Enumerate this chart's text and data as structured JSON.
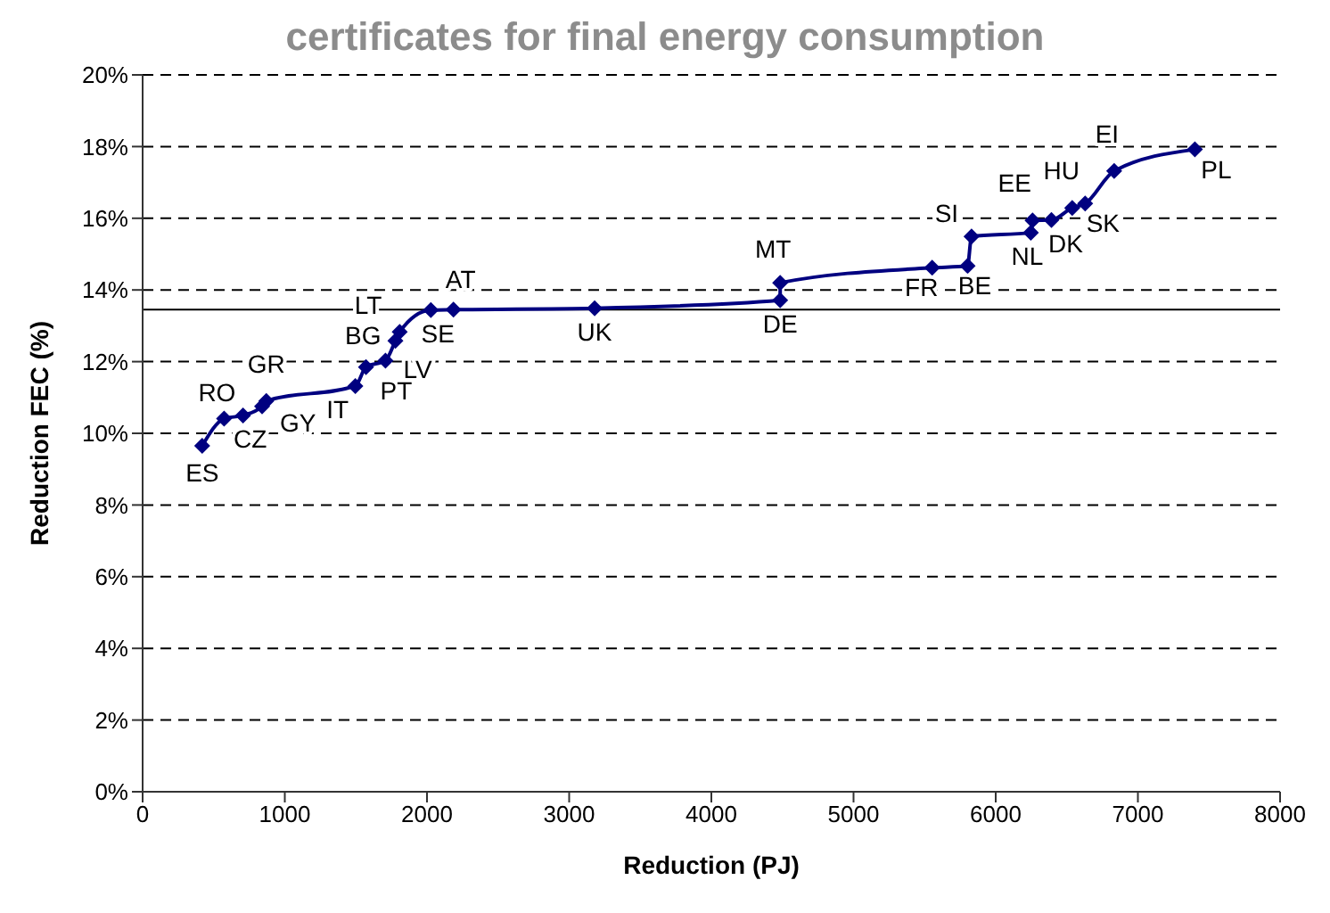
{
  "chart_data": {
    "type": "line",
    "title": "certificates for final energy consumption",
    "xlabel": "Reduction (PJ)",
    "ylabel": "Reduction FEC (%)",
    "series": [
      {
        "color": "#000080",
        "x": [
          419,
          573,
          706,
          840,
          870,
          1496,
          1571,
          1708,
          1778,
          1808,
          2027,
          2186,
          3179,
          4484,
          4484,
          5553,
          5802,
          5830,
          6247,
          6259,
          6392,
          6538,
          6629,
          6833,
          7401
        ],
        "values": [
          9.65,
          10.41,
          10.5,
          10.75,
          10.9,
          11.32,
          11.85,
          12.03,
          12.58,
          12.83,
          13.44,
          13.45,
          13.49,
          13.71,
          14.2,
          14.62,
          14.67,
          15.49,
          15.6,
          15.94,
          15.95,
          16.29,
          16.41,
          17.32,
          17.92
        ]
      }
    ],
    "annotations": [
      {
        "text": "ES",
        "x": 419,
        "y": 9.65
      },
      {
        "text": "RO",
        "x": 573,
        "y": 10.41
      },
      {
        "text": "CZ",
        "x": 706,
        "y": 10.5
      },
      {
        "text": "GY",
        "x": 840,
        "y": 10.75
      },
      {
        "text": "GR",
        "x": 870,
        "y": 10.9
      },
      {
        "text": "IT",
        "x": 1496,
        "y": 11.32
      },
      {
        "text": "PT",
        "x": 1571,
        "y": 11.85
      },
      {
        "text": "LV",
        "x": 1708,
        "y": 12.03
      },
      {
        "text": "BG",
        "x": 1778,
        "y": 12.58
      },
      {
        "text": "LT",
        "x": 1808,
        "y": 12.83
      },
      {
        "text": "SE",
        "x": 2027,
        "y": 13.44
      },
      {
        "text": "AT",
        "x": 2186,
        "y": 13.45
      },
      {
        "text": "UK",
        "x": 3179,
        "y": 13.49
      },
      {
        "text": "DE",
        "x": 4484,
        "y": 13.71
      },
      {
        "text": "MT",
        "x": 4484,
        "y": 14.2
      },
      {
        "text": "FR",
        "x": 5553,
        "y": 14.62
      },
      {
        "text": "BE",
        "x": 5802,
        "y": 14.67
      },
      {
        "text": "SI",
        "x": 5830,
        "y": 15.49
      },
      {
        "text": "NL",
        "x": 6247,
        "y": 15.6
      },
      {
        "text": "EE",
        "x": 6259,
        "y": 15.94
      },
      {
        "text": "DK",
        "x": 6392,
        "y": 15.95
      },
      {
        "text": "HU",
        "x": 6538,
        "y": 16.29
      },
      {
        "text": "SK",
        "x": 6629,
        "y": 16.41
      },
      {
        "text": "EI",
        "x": 6833,
        "y": 17.32
      },
      {
        "text": "PL",
        "x": 7401,
        "y": 17.92
      }
    ],
    "ref_lines": [
      {
        "axis": "y",
        "value": 13.45,
        "color": "#000000",
        "line_style": "solid"
      }
    ],
    "xlim": [
      0,
      8000
    ],
    "xticks": [
      0,
      1000,
      2000,
      3000,
      4000,
      5000,
      6000,
      7000,
      8000
    ],
    "ylim": [
      0,
      20
    ],
    "yticks": [
      {
        "value": 0,
        "label": "0%"
      },
      {
        "value": 2,
        "label": "2%"
      },
      {
        "value": 4,
        "label": "4%"
      },
      {
        "value": 6,
        "label": "6%"
      },
      {
        "value": 8,
        "label": "8%"
      },
      {
        "value": 10,
        "label": "10%"
      },
      {
        "value": 12,
        "label": "12%"
      },
      {
        "value": 14,
        "label": "14%"
      },
      {
        "value": 16,
        "label": "16%"
      },
      {
        "value": 18,
        "label": "18%"
      },
      {
        "value": 20,
        "label": "20%"
      }
    ],
    "grid": "y",
    "legend": false,
    "marker": "diamond",
    "line_style": "solid"
  }
}
